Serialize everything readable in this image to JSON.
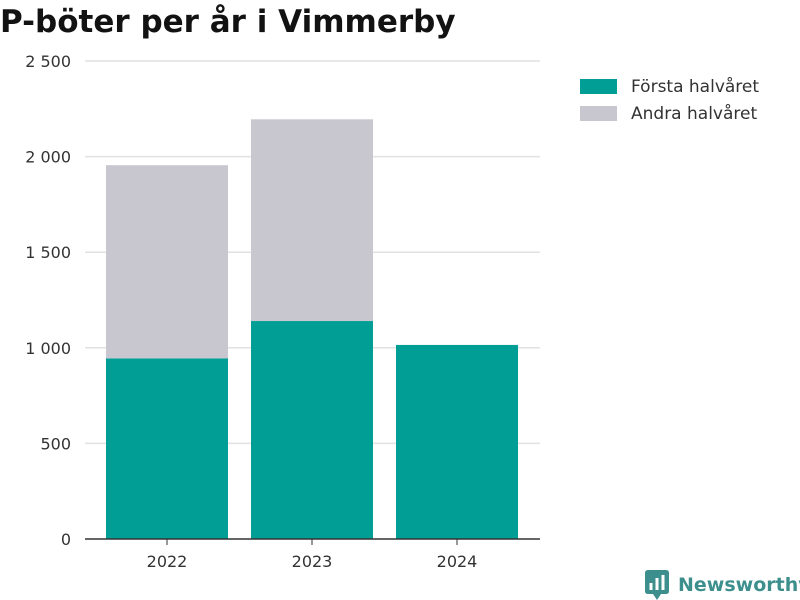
{
  "title": "P-böter per år i Vimmerby",
  "brand": {
    "name": "Newsworthy",
    "color": "#3d8f8e",
    "icon": "bar-chart-pin-icon"
  },
  "chart_data": {
    "type": "bar",
    "stacked": true,
    "title": "P-böter per år i Vimmerby",
    "xlabel": "",
    "ylabel": "",
    "categories": [
      "2022",
      "2023",
      "2024"
    ],
    "series": [
      {
        "name": "Första halvåret",
        "color": "#009e95",
        "values": [
          945,
          1140,
          1015
        ]
      },
      {
        "name": "Andra halvåret",
        "color": "#c8c7cf",
        "values": [
          1010,
          1055,
          0
        ]
      }
    ],
    "ylim": [
      0,
      2500
    ],
    "yticks": [
      0,
      500,
      1000,
      1500,
      2000,
      2500
    ],
    "ytick_labels": [
      "0",
      "500",
      "1 000",
      "1 500",
      "2 000",
      "2 500"
    ],
    "grid": true,
    "legend_position": "top-right"
  }
}
